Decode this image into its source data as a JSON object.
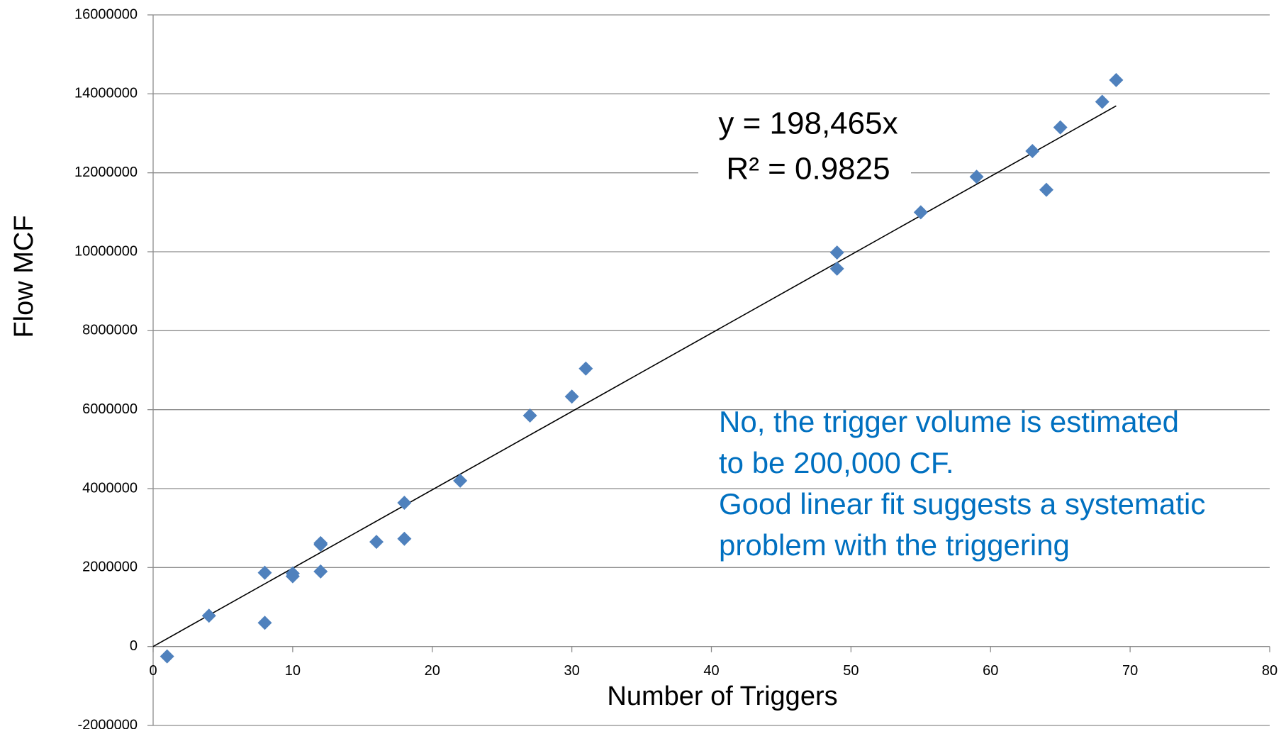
{
  "chart_data": {
    "type": "scatter",
    "x_label": "Number of Triggers",
    "y_label": "Flow MCF",
    "series": [
      {
        "color": "#4f81bd",
        "x": [
          1,
          4,
          8,
          8,
          10,
          10,
          12,
          12,
          12,
          16,
          18,
          18,
          22,
          27,
          30,
          31,
          49,
          49,
          55,
          59,
          63,
          64,
          65,
          68,
          69
        ],
        "values": [
          -250000,
          780000,
          1870000,
          600000,
          1850000,
          1780000,
          2620000,
          2580000,
          1900000,
          2650000,
          3640000,
          2730000,
          4200000,
          5850000,
          6330000,
          7040000,
          9980000,
          9570000,
          11000000,
          11900000,
          12550000,
          11570000,
          13150000,
          13800000,
          14350000
        ]
      }
    ],
    "trendline": {
      "label": "y = 198,465x",
      "r2_label": "R² = 0.9825",
      "slope": 198465,
      "x": [
        0,
        69
      ],
      "color": "#000000"
    },
    "annotation": {
      "color": "#0070c0",
      "lines": [
        "No, the trigger volume is estimated",
        "to be 200,000 CF.",
        "Good linear fit suggests a systematic",
        "problem with the triggering"
      ]
    },
    "xlim": [
      0,
      80
    ],
    "xticks": [
      0,
      10,
      20,
      30,
      40,
      50,
      60,
      70,
      80
    ],
    "ylim": [
      -2000000,
      16000000
    ],
    "yticks": [
      -2000000,
      0,
      2000000,
      4000000,
      6000000,
      8000000,
      10000000,
      12000000,
      14000000,
      16000000
    ],
    "grid": true
  }
}
